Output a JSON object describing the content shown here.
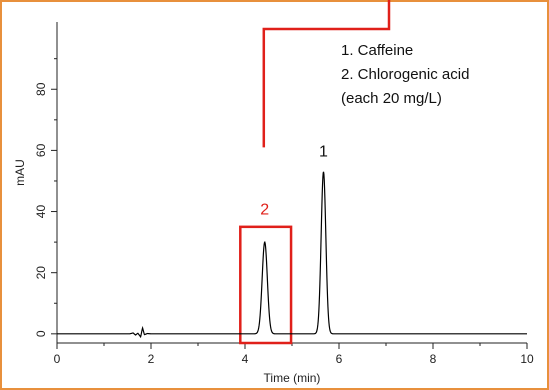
{
  "chart_data": {
    "type": "line",
    "xlabel": "Time (min)",
    "ylabel": "mAU",
    "xlim": [
      0,
      10
    ],
    "ylim": [
      -3,
      102
    ],
    "xticks": [
      0,
      2,
      4,
      6,
      8,
      10
    ],
    "yticks": [
      0,
      20,
      40,
      60,
      80
    ],
    "grid": false,
    "series": [
      {
        "baseline": 0,
        "noise": [
          {
            "x": 1.55,
            "y": 0
          },
          {
            "x": 1.62,
            "y": 0.3
          },
          {
            "x": 1.67,
            "y": -0.4
          },
          {
            "x": 1.72,
            "y": 0.2
          },
          {
            "x": 1.78,
            "y": -1.0
          },
          {
            "x": 1.82,
            "y": 2.0
          },
          {
            "x": 1.86,
            "y": -0.3
          },
          {
            "x": 1.92,
            "y": 0.1
          },
          {
            "x": 2.0,
            "y": 0
          }
        ],
        "peaks": [
          {
            "label": "2",
            "time": 4.42,
            "height": 30,
            "width": 0.055
          },
          {
            "label": "1",
            "time": 5.67,
            "height": 53,
            "width": 0.05
          }
        ]
      }
    ],
    "peak_labels": [
      {
        "text": "1",
        "x": 5.67,
        "y": 58,
        "color": "#111111"
      },
      {
        "text": "2",
        "x": 4.42,
        "y": 39,
        "color": "#e0201a"
      }
    ],
    "legend": {
      "lines": [
        "1. Caffeine",
        "2. Chlorogenic acid",
        "(each 20 mg/L)"
      ],
      "placement": "top-right"
    },
    "highlight": {
      "x_range": [
        3.9,
        4.98
      ],
      "y_range": [
        -3,
        35
      ],
      "color": "#e0201a",
      "connector_to_x": 4.4,
      "connector_to_y": 61
    }
  },
  "colors": {
    "frame_border": "#e8903c",
    "highlight": "#e0201a",
    "trace": "#000000"
  }
}
